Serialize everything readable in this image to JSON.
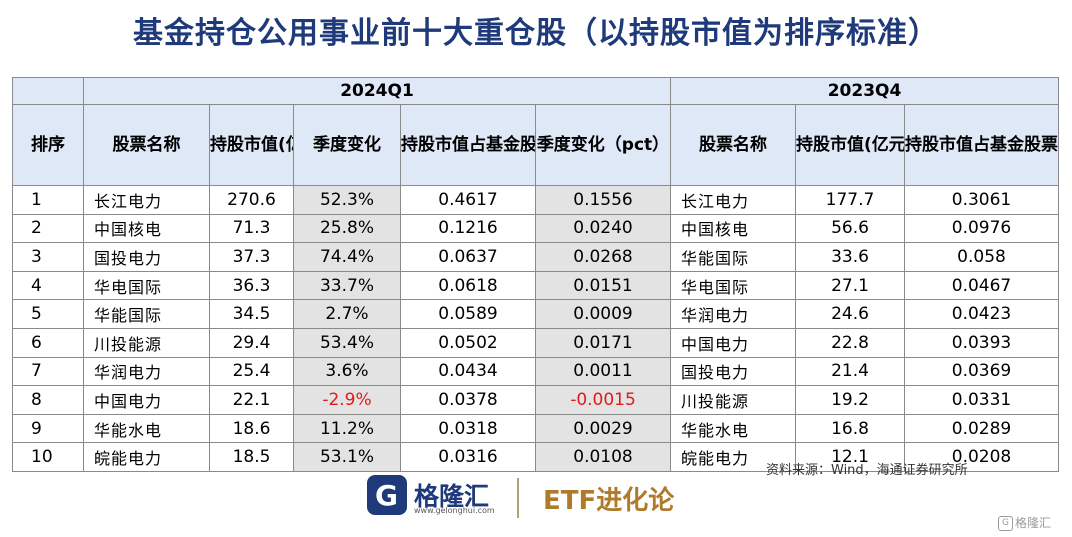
{
  "title": "基金持仓公用事业前十大重仓股（以持股市值为排序标准）",
  "periods": {
    "current": "2024Q1",
    "previous": "2023Q4"
  },
  "columns": {
    "rank": "排序",
    "name_q1": "股票名称",
    "value_q1": "持股市值(亿元)",
    "change_q1": "季度变化",
    "ratio_q1": "持股市值占基金股票投资市值比(%)",
    "change_pct": "季度变化（pct）",
    "name_q4": "股票名称",
    "value_q4": "持股市值(亿元)",
    "ratio_q4": "持股市值占基金股票投资市值比(%)"
  },
  "rows": [
    {
      "rank": "1",
      "name_q1": "长江电力",
      "value_q1": "270.6",
      "change_q1": "52.3%",
      "ratio_q1": "0.4617",
      "change_pct": "0.1556",
      "name_q4": "长江电力",
      "value_q4": "177.7",
      "ratio_q4": "0.3061"
    },
    {
      "rank": "2",
      "name_q1": "中国核电",
      "value_q1": "71.3",
      "change_q1": "25.8%",
      "ratio_q1": "0.1216",
      "change_pct": "0.0240",
      "name_q4": "中国核电",
      "value_q4": "56.6",
      "ratio_q4": "0.0976"
    },
    {
      "rank": "3",
      "name_q1": "国投电力",
      "value_q1": "37.3",
      "change_q1": "74.4%",
      "ratio_q1": "0.0637",
      "change_pct": "0.0268",
      "name_q4": "华能国际",
      "value_q4": "33.6",
      "ratio_q4": "0.058"
    },
    {
      "rank": "4",
      "name_q1": "华电国际",
      "value_q1": "36.3",
      "change_q1": "33.7%",
      "ratio_q1": "0.0618",
      "change_pct": "0.0151",
      "name_q4": "华电国际",
      "value_q4": "27.1",
      "ratio_q4": "0.0467"
    },
    {
      "rank": "5",
      "name_q1": "华能国际",
      "value_q1": "34.5",
      "change_q1": "2.7%",
      "ratio_q1": "0.0589",
      "change_pct": "0.0009",
      "name_q4": "华润电力",
      "value_q4": "24.6",
      "ratio_q4": "0.0423"
    },
    {
      "rank": "6",
      "name_q1": "川投能源",
      "value_q1": "29.4",
      "change_q1": "53.4%",
      "ratio_q1": "0.0502",
      "change_pct": "0.0171",
      "name_q4": "中国电力",
      "value_q4": "22.8",
      "ratio_q4": "0.0393"
    },
    {
      "rank": "7",
      "name_q1": "华润电力",
      "value_q1": "25.4",
      "change_q1": "3.6%",
      "ratio_q1": "0.0434",
      "change_pct": "0.0011",
      "name_q4": "国投电力",
      "value_q4": "21.4",
      "ratio_q4": "0.0369"
    },
    {
      "rank": "8",
      "name_q1": "中国电力",
      "value_q1": "22.1",
      "change_q1": "-2.9%",
      "ratio_q1": "0.0378",
      "change_pct": "-0.0015",
      "name_q4": "川投能源",
      "value_q4": "19.2",
      "ratio_q4": "0.0331"
    },
    {
      "rank": "9",
      "name_q1": "华能水电",
      "value_q1": "18.6",
      "change_q1": "11.2%",
      "ratio_q1": "0.0318",
      "change_pct": "0.0029",
      "name_q4": "华能水电",
      "value_q4": "16.8",
      "ratio_q4": "0.0289"
    },
    {
      "rank": "10",
      "name_q1": "皖能电力",
      "value_q1": "18.5",
      "change_q1": "53.1%",
      "ratio_q1": "0.0316",
      "change_pct": "0.0108",
      "name_q4": "皖能电力",
      "value_q4": "12.1",
      "ratio_q4": "0.0208"
    }
  ],
  "source": "资料来源：Wind，海通证券研究所",
  "brand": {
    "logo_glyph": "G",
    "logo_text": "格隆汇",
    "logo_url": "www.gelonghui.com",
    "etf_text": "ETF进化论",
    "watermark": "格隆汇",
    "watermark_glyph": "G"
  },
  "colors": {
    "title": "#1f3a7a",
    "header_bg": "#dfe8f6",
    "shade_bg": "#e3e3e3",
    "negative": "#e21a1a",
    "etf": "#b07a2b"
  }
}
